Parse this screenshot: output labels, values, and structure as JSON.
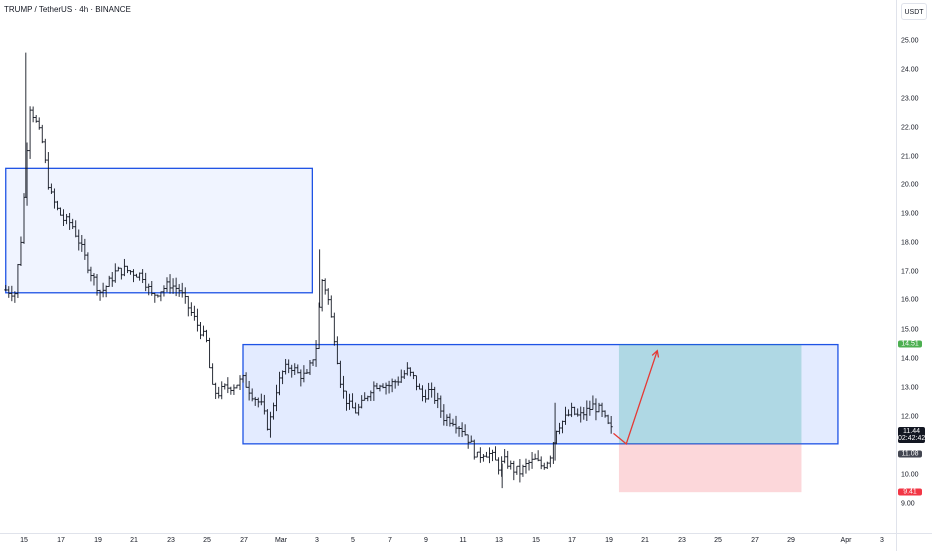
{
  "header": {
    "symbol_title": "TRUMP / TetherUS · 4h · BINANCE"
  },
  "price_axis": {
    "currency": "USDT",
    "ticks": [
      "25.00",
      "24.00",
      "23.00",
      "22.00",
      "21.00",
      "20.00",
      "19.00",
      "18.00",
      "17.00",
      "16.00",
      "15.00",
      "14.00",
      "13.00",
      "12.00",
      "10.00",
      "9.00"
    ],
    "target_price": "14.51",
    "current_price": "11.44",
    "countdown": "02:42:42",
    "entry_price": "11.08",
    "stop_price": "9.41"
  },
  "time_axis": {
    "labels": [
      "15",
      "17",
      "19",
      "21",
      "23",
      "25",
      "27",
      "Mar",
      "3",
      "5",
      "7",
      "9",
      "11",
      "13",
      "15",
      "17",
      "19",
      "21",
      "23",
      "25",
      "27",
      "29",
      "Apr",
      "3"
    ]
  },
  "colors": {
    "zone_fill": "#2962ff",
    "zone_border": "#1e53e5",
    "target_fill": "#26a69a",
    "stop_fill": "#f23645",
    "arrow": "#e53935",
    "target_tag": "#4caf50",
    "stop_tag": "#f23645",
    "candles": "#131722"
  },
  "chart_data": {
    "type": "candlestick",
    "symbol": "TRUMP / TetherUS",
    "interval": "4h",
    "exchange": "BINANCE",
    "x_labels": [
      "15",
      "17",
      "19",
      "21",
      "23",
      "25",
      "27",
      "Mar",
      "3",
      "5",
      "7",
      "9",
      "11",
      "13",
      "15",
      "17",
      "19",
      "21",
      "23",
      "25",
      "27",
      "29",
      "Apr",
      "3"
    ],
    "ylim": [
      8.5,
      26.0
    ],
    "path": [
      [
        14.0,
        16.4
      ],
      [
        14.5,
        16.3
      ],
      [
        14.9,
        18.5
      ],
      [
        15.3,
        22.8
      ],
      [
        15.6,
        22.3
      ],
      [
        16.0,
        21.5
      ],
      [
        16.4,
        19.8
      ],
      [
        16.8,
        19.2
      ],
      [
        17.2,
        18.8
      ],
      [
        17.6,
        18.7
      ],
      [
        18.0,
        18.1
      ],
      [
        18.4,
        17.4
      ],
      [
        18.8,
        16.8
      ],
      [
        19.2,
        16.3
      ],
      [
        19.6,
        16.6
      ],
      [
        20.0,
        17.0
      ],
      [
        20.5,
        17.1
      ],
      [
        21.0,
        17.0
      ],
      [
        21.5,
        16.9
      ],
      [
        22.0,
        16.2
      ],
      [
        22.5,
        16.4
      ],
      [
        23.0,
        16.6
      ],
      [
        23.5,
        16.4
      ],
      [
        24.0,
        15.8
      ],
      [
        24.5,
        15.2
      ],
      [
        25.0,
        14.6
      ],
      [
        25.3,
        13.0
      ],
      [
        25.6,
        12.8
      ],
      [
        26.0,
        13.0
      ],
      [
        26.5,
        13.1
      ],
      [
        27.0,
        13.3
      ],
      [
        27.5,
        12.8
      ],
      [
        28.0,
        12.4
      ],
      [
        28.4,
        11.6
      ],
      [
        28.8,
        12.9
      ],
      [
        29.2,
        13.6
      ],
      [
        29.6,
        13.8
      ],
      [
        30.0,
        13.5
      ],
      [
        30.5,
        13.4
      ],
      [
        31.0,
        14.4
      ],
      [
        31.3,
        16.8
      ],
      [
        31.6,
        16.3
      ],
      [
        32.0,
        14.8
      ],
      [
        32.4,
        13.0
      ],
      [
        32.8,
        12.4
      ],
      [
        33.2,
        12.2
      ],
      [
        33.6,
        12.5
      ],
      [
        34.0,
        13.0
      ],
      [
        34.5,
        13.2
      ],
      [
        35.0,
        13.1
      ],
      [
        35.5,
        13.3
      ],
      [
        36.0,
        13.6
      ],
      [
        36.4,
        13.3
      ],
      [
        36.8,
        12.7
      ],
      [
        37.2,
        12.9
      ],
      [
        37.6,
        12.6
      ],
      [
        38.0,
        12.0
      ],
      [
        38.5,
        11.9
      ],
      [
        39.0,
        11.6
      ],
      [
        39.4,
        11.2
      ],
      [
        39.8,
        10.6
      ],
      [
        40.2,
        10.8
      ],
      [
        40.6,
        10.7
      ],
      [
        41.0,
        10.3
      ],
      [
        41.4,
        10.5
      ],
      [
        41.8,
        10.2
      ],
      [
        42.2,
        10.1
      ],
      [
        42.6,
        10.4
      ],
      [
        43.0,
        10.5
      ],
      [
        43.4,
        10.3
      ],
      [
        43.8,
        10.6
      ],
      [
        44.2,
        11.7
      ],
      [
        44.6,
        11.9
      ],
      [
        45.0,
        12.2
      ],
      [
        45.4,
        12.0
      ],
      [
        45.8,
        12.2
      ],
      [
        46.2,
        12.4
      ],
      [
        46.6,
        12.2
      ],
      [
        47.0,
        11.7
      ],
      [
        47.3,
        11.44
      ]
    ],
    "zones": [
      {
        "type": "supply",
        "from": 14.0,
        "to": 30.8,
        "top": 20.6,
        "bottom": 16.3
      },
      {
        "type": "demand",
        "from": 27.0,
        "to": 59.6,
        "top": 14.51,
        "bottom": 11.08
      }
    ],
    "position": {
      "type": "long",
      "from": 47.6,
      "to": 57.6,
      "entry": 11.08,
      "target": 14.51,
      "stop": 9.41,
      "projection": [
        [
          47.3,
          11.44
        ],
        [
          48.0,
          11.08
        ],
        [
          49.7,
          14.3
        ]
      ]
    },
    "current_price": 11.44,
    "countdown": "02:42:42",
    "currency": "USDT"
  }
}
